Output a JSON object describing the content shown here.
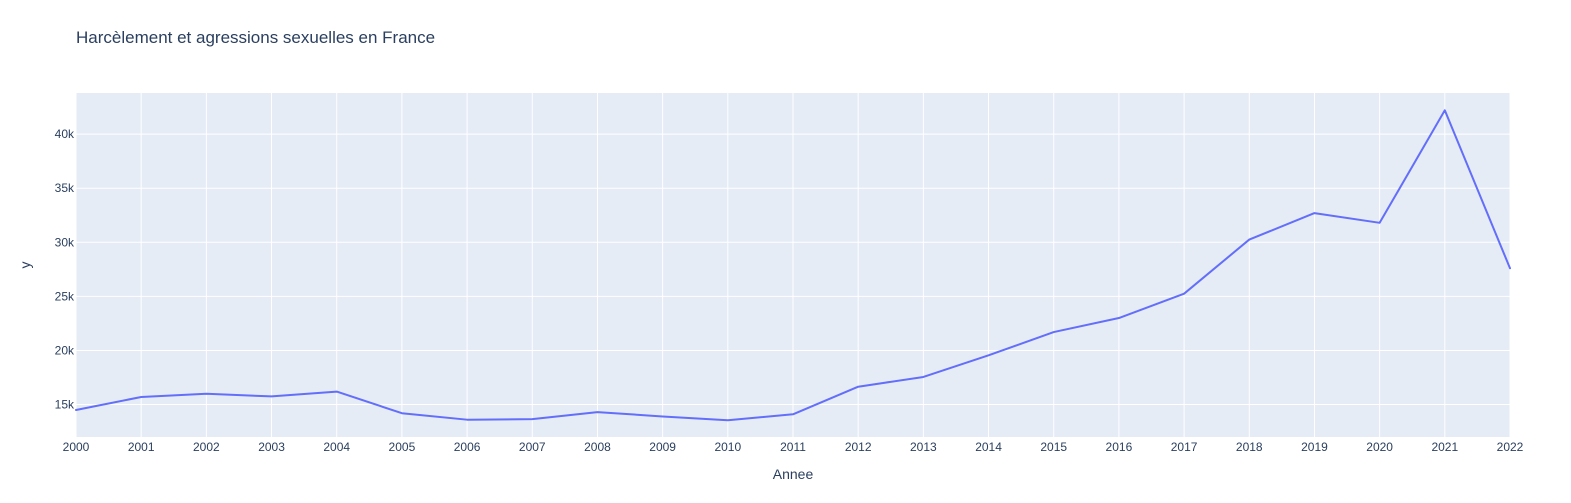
{
  "chart_data": {
    "type": "line",
    "title": "Harcèlement et agressions sexuelles en France",
    "xlabel": "Annee",
    "ylabel": "y",
    "x": [
      2000,
      2001,
      2002,
      2003,
      2004,
      2005,
      2006,
      2007,
      2008,
      2009,
      2010,
      2011,
      2012,
      2013,
      2014,
      2015,
      2016,
      2017,
      2018,
      2019,
      2020,
      2021,
      2022
    ],
    "series": [
      {
        "values": [
          14500,
          15700,
          16000,
          15750,
          16200,
          14200,
          13600,
          13650,
          14300,
          13900,
          13550,
          14100,
          16650,
          17550,
          19550,
          21700,
          23000,
          25250,
          30250,
          32700,
          31800,
          42200,
          27600
        ],
        "color": "#636efa"
      }
    ],
    "xlim": [
      2000,
      2022
    ],
    "ylim": [
      12000,
      43800
    ],
    "y_ticks": [
      15000,
      20000,
      25000,
      30000,
      35000,
      40000
    ],
    "y_tick_labels": [
      "15k",
      "20k",
      "25k",
      "30k",
      "35k",
      "40k"
    ],
    "x_tick_labels": [
      "2000",
      "2001",
      "2002",
      "2003",
      "2004",
      "2005",
      "2006",
      "2007",
      "2008",
      "2009",
      "2010",
      "2011",
      "2012",
      "2013",
      "2014",
      "2015",
      "2016",
      "2017",
      "2018",
      "2019",
      "2020",
      "2021",
      "2022"
    ],
    "grid": true,
    "plot_background": "#e5ecf6",
    "grid_color": "#ffffff",
    "text_color": "#2a3f5f"
  }
}
